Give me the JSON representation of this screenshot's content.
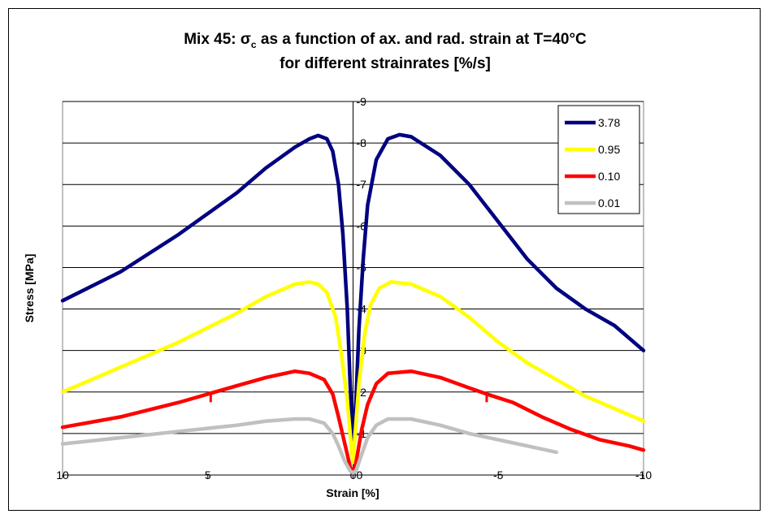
{
  "chart_data": {
    "type": "line",
    "title_line1_prefix": "Mix 45: σ",
    "title_line1_sub": "c",
    "title_line1_suffix": " as a function of ax.  and rad. strain at T=40°C",
    "title_line2": "for different strainrates [%/s]",
    "xlabel": "Strain [%]",
    "ylabel": "Stress [MPa]",
    "xlim": [
      10,
      -10
    ],
    "ylim": [
      0,
      -9
    ],
    "x_ticks": [
      "10",
      "5",
      "0",
      "-5",
      "-10"
    ],
    "x_tick_values": [
      10,
      5,
      0,
      -5,
      -10
    ],
    "y_ticks": [
      "0",
      "-1",
      "-2",
      "-3",
      "-4",
      "-5",
      "-6",
      "-7",
      "-8",
      "-9"
    ],
    "y_tick_values": [
      0,
      -1,
      -2,
      -3,
      -4,
      -5,
      -6,
      -7,
      -8,
      -9
    ],
    "grid": true,
    "legend_position": "top-right",
    "series": [
      {
        "name": "3.78",
        "color": "#000080",
        "points": [
          [
            10,
            -4.2
          ],
          [
            8,
            -4.9
          ],
          [
            6,
            -5.8
          ],
          [
            4,
            -6.8
          ],
          [
            3,
            -7.4
          ],
          [
            2,
            -7.9
          ],
          [
            1.5,
            -8.1
          ],
          [
            1.2,
            -8.18
          ],
          [
            0.9,
            -8.1
          ],
          [
            0.7,
            -7.8
          ],
          [
            0.5,
            -7.0
          ],
          [
            0.35,
            -5.8
          ],
          [
            0.2,
            -4.0
          ],
          [
            0.1,
            -2.2
          ],
          [
            0,
            -0.8
          ],
          [
            -0.1,
            -1.8
          ],
          [
            -0.2,
            -3.5
          ],
          [
            -0.35,
            -5.2
          ],
          [
            -0.5,
            -6.5
          ],
          [
            -0.8,
            -7.6
          ],
          [
            -1.2,
            -8.1
          ],
          [
            -1.6,
            -8.2
          ],
          [
            -2.0,
            -8.15
          ],
          [
            -3.0,
            -7.7
          ],
          [
            -4.0,
            -7.0
          ],
          [
            -5.0,
            -6.1
          ],
          [
            -6.0,
            -5.2
          ],
          [
            -7.0,
            -4.5
          ],
          [
            -8.0,
            -4.0
          ],
          [
            -9.0,
            -3.6
          ],
          [
            -10,
            -3.0
          ]
        ]
      },
      {
        "name": "0.95",
        "color": "#ffff00",
        "points": [
          [
            10,
            -2.0
          ],
          [
            8,
            -2.6
          ],
          [
            6,
            -3.2
          ],
          [
            4,
            -3.9
          ],
          [
            3,
            -4.3
          ],
          [
            2,
            -4.6
          ],
          [
            1.5,
            -4.65
          ],
          [
            1.2,
            -4.6
          ],
          [
            0.9,
            -4.4
          ],
          [
            0.6,
            -3.8
          ],
          [
            0.4,
            -2.9
          ],
          [
            0.2,
            -1.8
          ],
          [
            0.05,
            -0.6
          ],
          [
            0,
            -0.3
          ],
          [
            -0.05,
            -0.8
          ],
          [
            -0.2,
            -2.2
          ],
          [
            -0.4,
            -3.4
          ],
          [
            -0.6,
            -4.1
          ],
          [
            -0.9,
            -4.5
          ],
          [
            -1.3,
            -4.65
          ],
          [
            -2.0,
            -4.6
          ],
          [
            -3.0,
            -4.3
          ],
          [
            -4.0,
            -3.8
          ],
          [
            -5.0,
            -3.2
          ],
          [
            -6.0,
            -2.7
          ],
          [
            -7.0,
            -2.3
          ],
          [
            -8.0,
            -1.9
          ],
          [
            -9.0,
            -1.6
          ],
          [
            -10,
            -1.3
          ]
        ]
      },
      {
        "name": "0.10",
        "color": "#ff0000",
        "points": [
          [
            10,
            -1.15
          ],
          [
            8,
            -1.4
          ],
          [
            6,
            -1.75
          ],
          [
            5,
            -1.95
          ],
          [
            4,
            -2.15
          ],
          [
            3,
            -2.35
          ],
          [
            2,
            -2.5
          ],
          [
            1.5,
            -2.45
          ],
          [
            1.0,
            -2.3
          ],
          [
            0.7,
            -1.95
          ],
          [
            0.5,
            -1.4
          ],
          [
            0.3,
            -0.8
          ],
          [
            0.1,
            -0.2
          ],
          [
            0,
            -0.05
          ],
          [
            -0.1,
            -0.3
          ],
          [
            -0.3,
            -1.1
          ],
          [
            -0.5,
            -1.7
          ],
          [
            -0.8,
            -2.2
          ],
          [
            -1.2,
            -2.45
          ],
          [
            -2.0,
            -2.5
          ],
          [
            -3.0,
            -2.35
          ],
          [
            -4.0,
            -2.1
          ],
          [
            -4.6,
            -1.95
          ],
          [
            -5.5,
            -1.75
          ],
          [
            -6.5,
            -1.4
          ],
          [
            -7.5,
            -1.1
          ],
          [
            -8.5,
            -0.85
          ],
          [
            -9.5,
            -0.7
          ],
          [
            -10,
            -0.6
          ]
        ]
      },
      {
        "name": "0.01",
        "color": "#c0c0c0",
        "points": [
          [
            10,
            -0.75
          ],
          [
            8,
            -0.9
          ],
          [
            6,
            -1.05
          ],
          [
            4,
            -1.2
          ],
          [
            3,
            -1.3
          ],
          [
            2,
            -1.35
          ],
          [
            1.5,
            -1.35
          ],
          [
            1.0,
            -1.25
          ],
          [
            0.7,
            -1.0
          ],
          [
            0.5,
            -0.7
          ],
          [
            0.3,
            -0.35
          ],
          [
            0.1,
            -0.1
          ],
          [
            0,
            -0.05
          ],
          [
            -0.1,
            -0.1
          ],
          [
            -0.3,
            -0.5
          ],
          [
            -0.5,
            -0.9
          ],
          [
            -0.8,
            -1.2
          ],
          [
            -1.2,
            -1.35
          ],
          [
            -2.0,
            -1.35
          ],
          [
            -3.0,
            -1.2
          ],
          [
            -4.0,
            -1.0
          ],
          [
            -5.0,
            -0.85
          ],
          [
            -6.0,
            -0.7
          ],
          [
            -7.0,
            -0.55
          ]
        ]
      }
    ],
    "tick_marks_on_010": [
      [
        4.9,
        -1.95
      ],
      [
        -4.6,
        -1.95
      ]
    ]
  }
}
